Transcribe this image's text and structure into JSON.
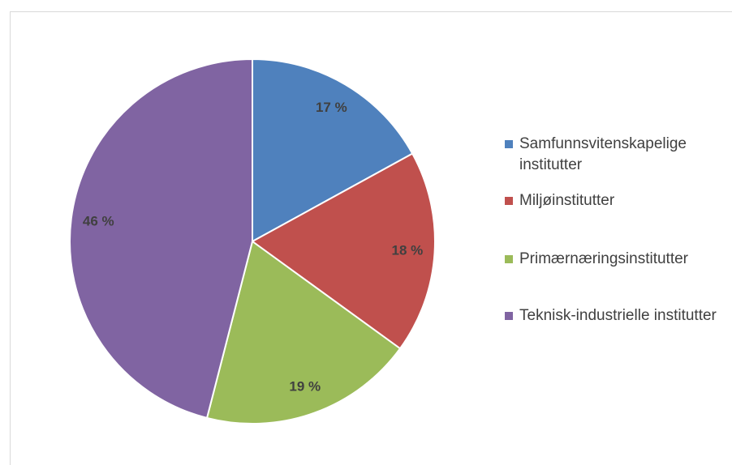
{
  "chart_data": {
    "type": "pie",
    "categories": [
      "Samfunnsvitenskapelige institutter",
      "Miljøinstitutter",
      "Primærnæringsinstitutter",
      "Teknisk-industrielle institutter"
    ],
    "values": [
      17,
      18,
      19,
      46
    ],
    "value_labels": [
      "17 %",
      "18 %",
      "19 %",
      "46 %"
    ],
    "colors": [
      "#4f81bd",
      "#c0504d",
      "#9bbb59",
      "#8064a2"
    ],
    "legend": "right"
  }
}
